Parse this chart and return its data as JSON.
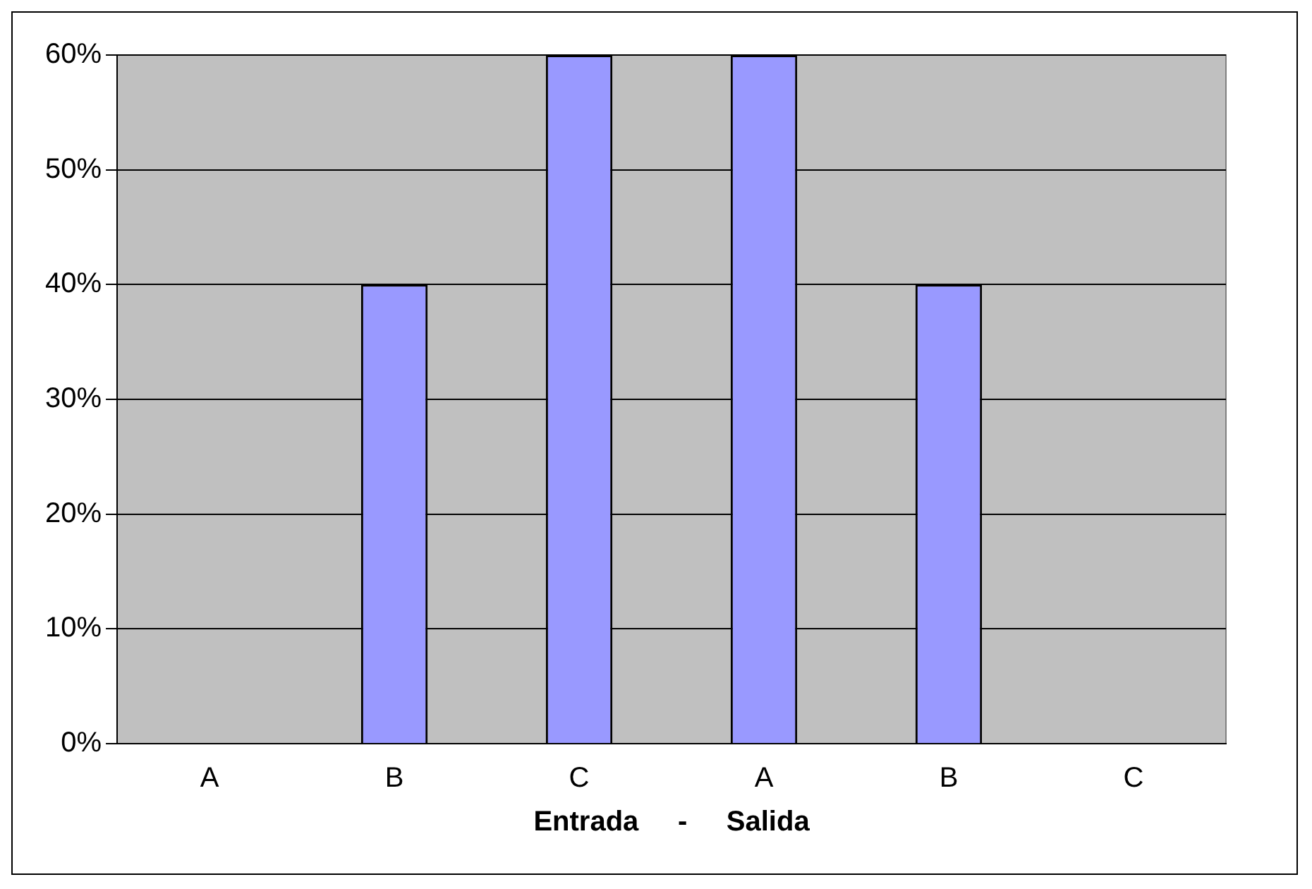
{
  "chart_data": {
    "type": "bar",
    "xlabel": "Entrada     -     Salida",
    "categories": [
      "A",
      "B",
      "C",
      "A",
      "B",
      "C"
    ],
    "values": [
      0,
      40,
      60,
      60,
      40,
      0
    ],
    "color": "#9999ff",
    "ylim": [
      0,
      60
    ],
    "yticks": [
      {
        "value": 0,
        "label": "0%"
      },
      {
        "value": 10,
        "label": "10%"
      },
      {
        "value": 20,
        "label": "20%"
      },
      {
        "value": 30,
        "label": "30%"
      },
      {
        "value": 40,
        "label": "40%"
      },
      {
        "value": 50,
        "label": "50%"
      },
      {
        "value": 60,
        "label": "60%"
      }
    ],
    "grid": "y"
  }
}
